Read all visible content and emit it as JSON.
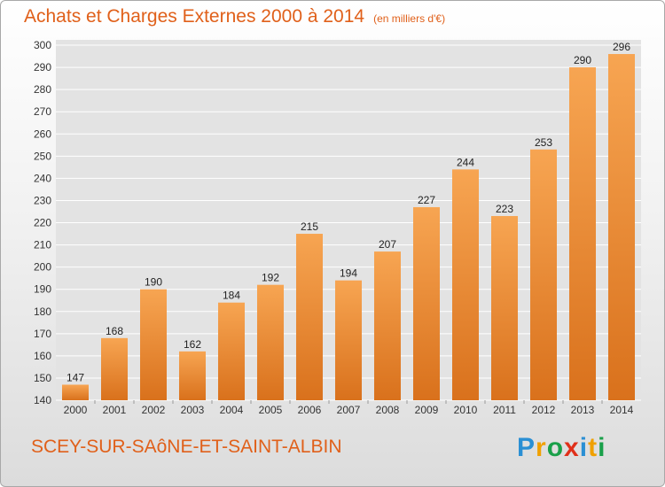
{
  "title": "Achats et Charges Externes 2000 à 2014",
  "subtitle": "(en milliers d'€)",
  "location": "SCEY-SUR-SAôNE-ET-SAINT-ALBIN",
  "logo": {
    "text": "Proxiti",
    "letters": [
      {
        "char": "P",
        "color": "#2a8fd4"
      },
      {
        "char": "r",
        "color": "#f0a000"
      },
      {
        "char": "o",
        "color": "#1aa04a"
      },
      {
        "char": "x",
        "color": "#e0301a"
      },
      {
        "char": "i",
        "color": "#2a8fd4"
      },
      {
        "char": "t",
        "color": "#f0a000"
      },
      {
        "char": "i",
        "color": "#1aa04a"
      }
    ]
  },
  "colors": {
    "accent": "#e0601a",
    "bar_top": "#f7a552",
    "bar_bottom": "#d9711c",
    "grid": "#ffffff"
  },
  "chart_data": {
    "type": "bar",
    "categories": [
      "2000",
      "2001",
      "2002",
      "2003",
      "2004",
      "2005",
      "2006",
      "2007",
      "2008",
      "2009",
      "2010",
      "2011",
      "2012",
      "2013",
      "2014"
    ],
    "values": [
      147,
      168,
      190,
      162,
      184,
      192,
      215,
      194,
      207,
      227,
      244,
      223,
      253,
      290,
      296
    ],
    "title": "Achats et Charges Externes 2000 à 2014",
    "ylim": [
      140,
      300
    ],
    "yticks": [
      140,
      150,
      160,
      170,
      180,
      190,
      200,
      210,
      220,
      230,
      240,
      250,
      260,
      270,
      280,
      290,
      300
    ],
    "grid": true,
    "data_labels": true
  }
}
